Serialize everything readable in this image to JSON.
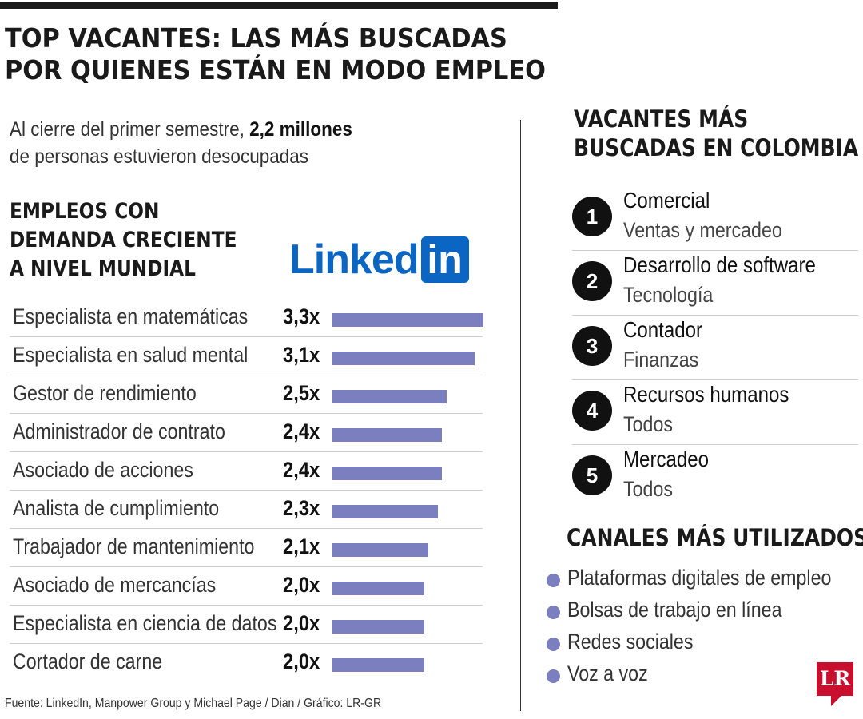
{
  "title": {
    "line1": "TOP VACANTES: LAS MÁS BUSCADAS",
    "line2": "POR QUIENES ESTÁN EN MODO EMPLEO"
  },
  "intro": {
    "pre": "Al cierre del primer semestre, ",
    "highlight": "2,2 millones",
    "post": "de personas estuvieron desocupadas"
  },
  "growing_jobs": {
    "heading_lines": [
      "EMPLEOS CON",
      "DEMANDA CRECIENTE",
      "A NIVEL MUNDIAL"
    ],
    "logo_word": "Linked",
    "logo_box": "in"
  },
  "chart_data": {
    "type": "bar",
    "orientation": "horizontal",
    "title": "EMPLEOS CON DEMANDA CRECIENTE A NIVEL MUNDIAL",
    "categories": [
      "Especialista en matemáticas",
      "Especialista en salud mental",
      "Gestor de rendimiento",
      "Administrador de contrato",
      "Asociado de acciones",
      "Analista de cumplimiento",
      "Trabajador de mantenimiento",
      "Asociado de mercancías",
      "Especialista en ciencia de datos",
      "Cortador de carne"
    ],
    "values": [
      3.3,
      3.1,
      2.5,
      2.4,
      2.4,
      2.3,
      2.1,
      2.0,
      2.0,
      2.0
    ],
    "value_labels": [
      "3,3x",
      "3,1x",
      "2,5x",
      "2,4x",
      "2,4x",
      "2,3x",
      "2,1x",
      "2,0x",
      "2,0x",
      "2,0x"
    ],
    "bar_color": "#7b7fc0",
    "xlim": [
      0,
      3.3
    ],
    "grid": false
  },
  "source": "Fuente: LinkedIn, Manpower Group y Michael Page / Dian / Gráfico: LR-GR",
  "vacancies": {
    "heading_lines": [
      "VACANTES MÁS",
      "BUSCADAS EN COLOMBIA"
    ],
    "items": [
      {
        "rank": "1",
        "title": "Comercial",
        "area": "Ventas y mercadeo"
      },
      {
        "rank": "2",
        "title": "Desarrollo de software",
        "area": "Tecnología"
      },
      {
        "rank": "3",
        "title": "Contador",
        "area": "Finanzas"
      },
      {
        "rank": "4",
        "title": "Recursos humanos",
        "area": "Todos"
      },
      {
        "rank": "5",
        "title": "Mercadeo",
        "area": "Todos"
      }
    ]
  },
  "channels": {
    "heading": "CANALES MÁS UTILIZADOS",
    "items": [
      "Plataformas digitales de empleo",
      "Bolsas de trabajo en línea",
      "Redes sociales",
      "Voz a voz"
    ],
    "dot_color": "#7b7fc0"
  },
  "brand": {
    "logo_text": "LR",
    "color": "#c8102e"
  }
}
